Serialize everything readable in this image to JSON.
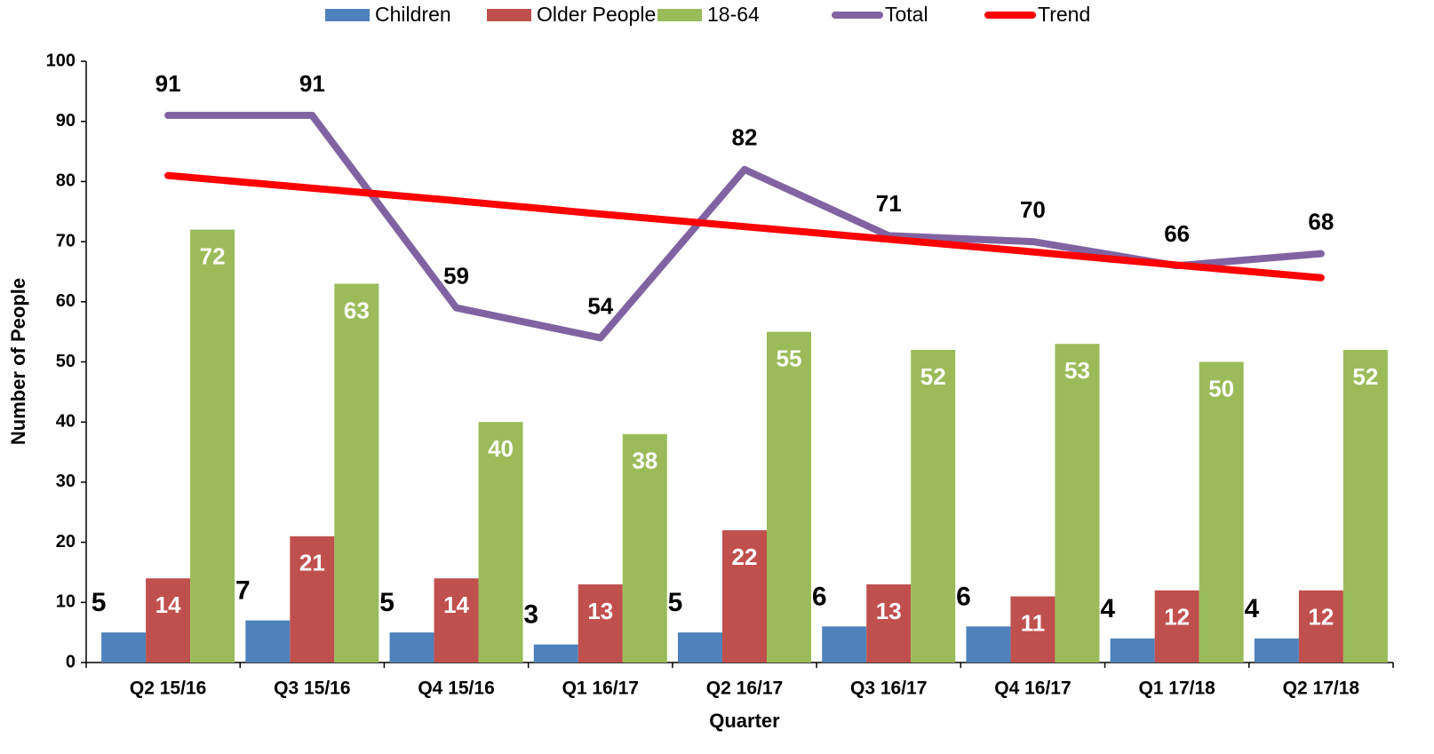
{
  "chart_data": {
    "type": "bar",
    "x_label": "Quarter",
    "y_label": "Number of People",
    "categories": [
      "Q2 15/16",
      "Q3 15/16",
      "Q4 15/16",
      "Q1 16/17",
      "Q2 16/17",
      "Q3 16/17",
      "Q4 16/17",
      "Q1 17/18",
      "Q2 17/18"
    ],
    "series": [
      {
        "name": "Children",
        "type": "bar",
        "color": "#4f81bd",
        "values": [
          5,
          7,
          5,
          3,
          5,
          6,
          6,
          4,
          4
        ]
      },
      {
        "name": "Older People",
        "type": "bar",
        "color": "#c0504d",
        "values": [
          14,
          21,
          14,
          13,
          22,
          13,
          11,
          12,
          12
        ]
      },
      {
        "name": "18-64",
        "type": "bar",
        "color": "#9bbb59",
        "values": [
          72,
          63,
          40,
          38,
          55,
          52,
          53,
          50,
          52
        ]
      },
      {
        "name": "Total",
        "type": "line",
        "color": "#8064a2",
        "values": [
          91,
          91,
          59,
          54,
          82,
          71,
          70,
          66,
          68
        ]
      },
      {
        "name": "Trend",
        "type": "line",
        "color": "#ff0000",
        "values": [
          81,
          78.9,
          76.8,
          74.6,
          72.5,
          70.4,
          68.3,
          66.1,
          64
        ]
      }
    ],
    "ylim": [
      0,
      100
    ],
    "yticks": [
      0,
      10,
      20,
      30,
      40,
      50,
      60,
      70,
      80,
      90,
      100
    ],
    "grid": false,
    "legend": "top"
  }
}
